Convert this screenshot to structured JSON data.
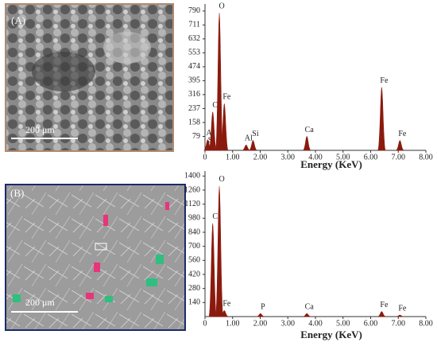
{
  "panels": [
    {
      "label": "(A)",
      "scale_bar": "200 μm"
    },
    {
      "label": "(B)",
      "scale_bar": "200 μm"
    }
  ],
  "chart_data": [
    {
      "type": "spectrum",
      "xlabel": "Energy (KeV)",
      "color": "#8b1a0e",
      "xlim": [
        0,
        8
      ],
      "ylim": [
        0,
        830
      ],
      "xticks": [
        0,
        {
          "value": 1,
          "label": "1.00"
        },
        {
          "value": 2,
          "label": "2.00"
        },
        {
          "value": 3,
          "label": "3.00"
        },
        {
          "value": 4,
          "label": "4.00"
        },
        {
          "value": 5,
          "label": "5.00"
        },
        {
          "value": 6,
          "label": "6.00"
        },
        {
          "value": 7,
          "label": "7.00"
        },
        {
          "value": 8,
          "label": "8.00"
        }
      ],
      "yticks": [
        79,
        158,
        237,
        316,
        395,
        474,
        553,
        632,
        711,
        790
      ],
      "peaks": [
        {
          "label": "Al",
          "x": 0.1,
          "y": 60
        },
        {
          "label": "Si",
          "x": 0.14,
          "y": 20
        },
        {
          "label": "C",
          "x": 0.28,
          "y": 218
        },
        {
          "label": "O",
          "x": 0.52,
          "y": 780
        },
        {
          "label": "Fe",
          "x": 0.7,
          "y": 265
        },
        {
          "label": "Al",
          "x": 1.49,
          "y": 30
        },
        {
          "label": "Si",
          "x": 1.74,
          "y": 56
        },
        {
          "label": "Ca",
          "x": 3.69,
          "y": 79
        },
        {
          "label": "Fe",
          "x": 6.4,
          "y": 358
        },
        {
          "label": "Fe",
          "x": 7.06,
          "y": 56
        }
      ]
    },
    {
      "type": "spectrum",
      "xlabel": "Energy (KeV)",
      "color": "#8b1a0e",
      "xlim": [
        0,
        8
      ],
      "ylim": [
        0,
        1450
      ],
      "xticks": [
        0,
        {
          "value": 1,
          "label": "1.00"
        },
        {
          "value": 2,
          "label": "2.00"
        },
        {
          "value": 3,
          "label": "3.00"
        },
        {
          "value": 4,
          "label": "4.00"
        },
        {
          "value": 5,
          "label": "5.00"
        },
        {
          "value": 6,
          "label": "6.00"
        },
        {
          "value": 7,
          "label": "7.00"
        },
        {
          "value": 8,
          "label": "8.00"
        }
      ],
      "yticks": [
        140,
        280,
        420,
        560,
        700,
        840,
        980,
        1120,
        1260,
        1400
      ],
      "peaks": [
        {
          "label": "C",
          "x": 0.28,
          "y": 930
        },
        {
          "label": "O",
          "x": 0.52,
          "y": 1300
        },
        {
          "label": "Fe",
          "x": 0.7,
          "y": 60
        },
        {
          "label": "P",
          "x": 2.01,
          "y": 30
        },
        {
          "label": "Ca",
          "x": 3.69,
          "y": 30
        },
        {
          "label": "Fe",
          "x": 6.4,
          "y": 50
        },
        {
          "label": "Fe",
          "x": 7.06,
          "y": 15
        }
      ]
    }
  ]
}
